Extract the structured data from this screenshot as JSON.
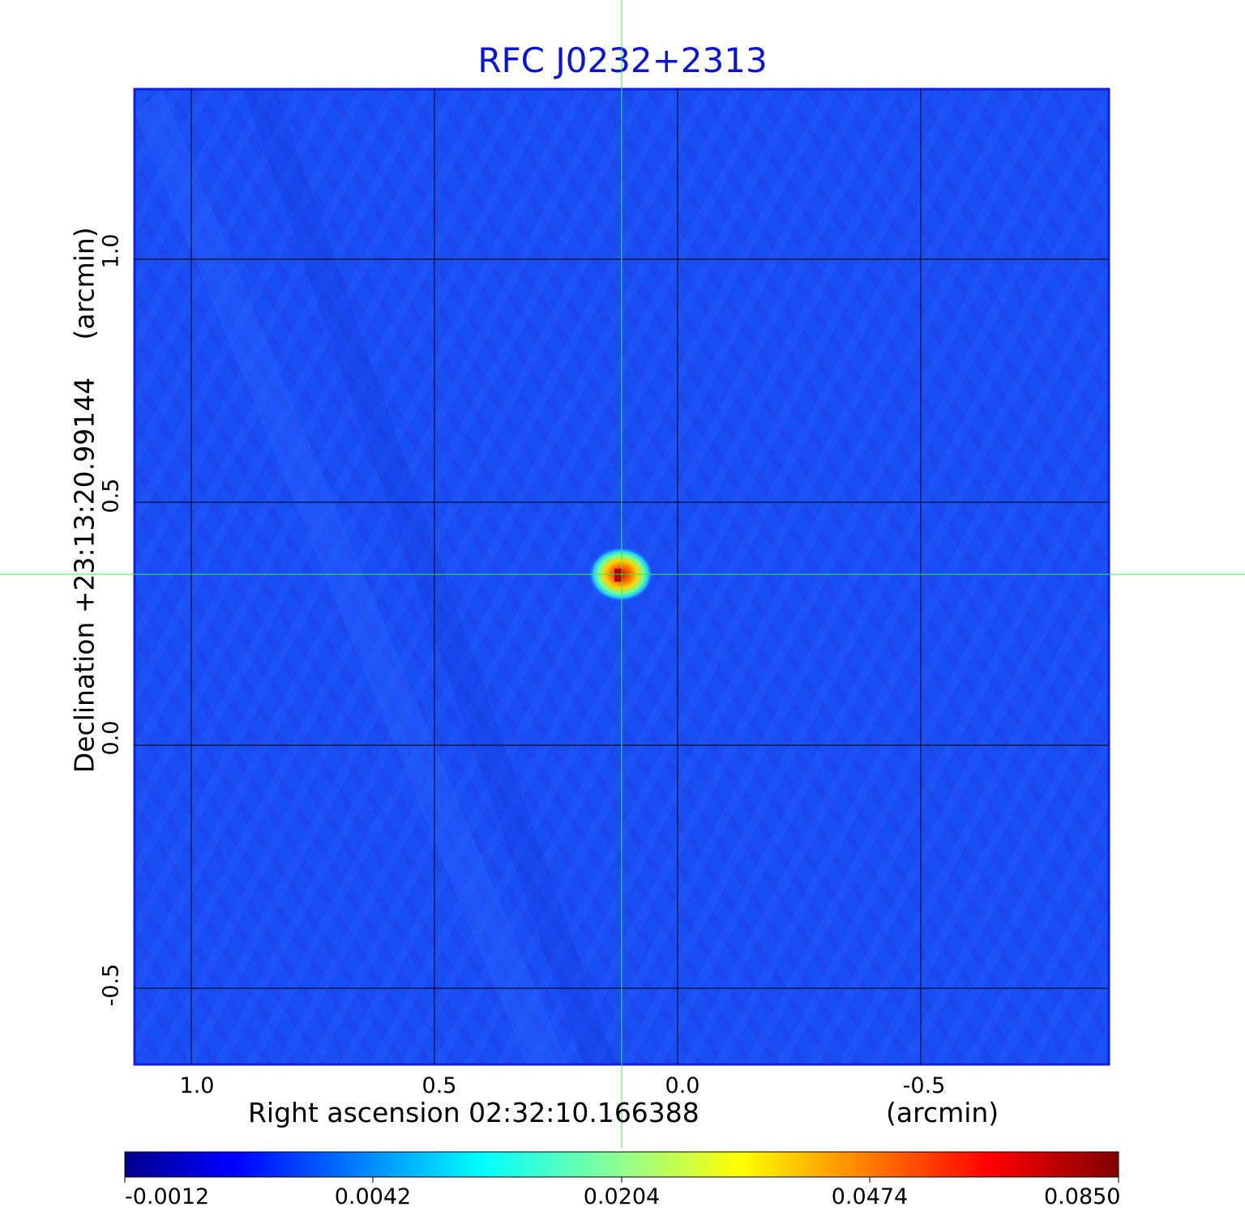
{
  "title": "RFC J0232+2313",
  "title_color": "#0a14d8",
  "x_axis": {
    "label": "Right ascension  02:32:10.166388",
    "unit": "(arcmin)",
    "ticks": [
      "1.0",
      "0.5",
      "0.0",
      "-0.5"
    ]
  },
  "y_axis": {
    "label": "Declination  +23:13:20.99144",
    "unit": "(arcmin)",
    "ticks": [
      "1.0",
      "0.5",
      "0.0",
      "-0.5"
    ]
  },
  "colorbar": {
    "ticks": [
      "-0.0012",
      "0.0042",
      "0.0204",
      "0.0474",
      "0.0850"
    ],
    "colors": [
      "#00008f",
      "#0000ff",
      "#00ffff",
      "#ffff00",
      "#ff0000",
      "#800000"
    ]
  },
  "image_background": "#1a4ef5",
  "crosshair_color": "#33ee44",
  "grid_color": "#000000"
}
